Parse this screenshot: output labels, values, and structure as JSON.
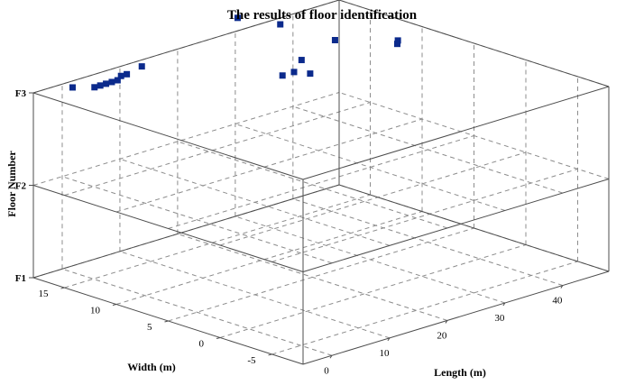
{
  "chart_data": {
    "type": "scatter",
    "title": "The results of floor identification",
    "xlabel": "Length (m)",
    "ylabel": "Width (m)",
    "zlabel": "Floor Number",
    "x_ticks": [
      "0",
      "10",
      "20",
      "30",
      "40"
    ],
    "y_ticks": [
      "-5",
      "0",
      "5",
      "10",
      "15"
    ],
    "z_ticks": [
      "F1",
      "F2",
      "F3"
    ],
    "xlim": [
      -5,
      48
    ],
    "ylim": [
      -8,
      18
    ],
    "zlim": [
      1,
      3
    ],
    "grid": true,
    "marker": "square",
    "colors": {
      "marker": "#0b2a8c",
      "axis": "#4d4d4d",
      "grid": "#8c8c8c"
    },
    "points": [
      {
        "x": 0.0,
        "y": 17.0,
        "z": 3
      },
      {
        "x": 2.0,
        "y": 16.0,
        "z": 3
      },
      {
        "x": 3.0,
        "y": 16.0,
        "z": 3
      },
      {
        "x": 4.0,
        "y": 16.0,
        "z": 3
      },
      {
        "x": 5.0,
        "y": 16.0,
        "z": 3
      },
      {
        "x": 6.0,
        "y": 16.0,
        "z": 3
      },
      {
        "x": 7.5,
        "y": 16.5,
        "z": 3
      },
      {
        "x": 8.5,
        "y": 16.5,
        "z": 3
      },
      {
        "x": 12.0,
        "y": 17.0,
        "z": 3
      },
      {
        "x": 22.0,
        "y": 9.0,
        "z": 3
      },
      {
        "x": 24.0,
        "y": 9.0,
        "z": 3
      },
      {
        "x": 25.0,
        "y": 8.0,
        "z": 3
      },
      {
        "x": 28.0,
        "y": 10.5,
        "z": 3
      },
      {
        "x": 42.0,
        "y": 9.0,
        "z": 3
      },
      {
        "x": 41.0,
        "y": 8.5,
        "z": 3
      },
      {
        "x": 36.5,
        "y": 12.0,
        "z": 3
      },
      {
        "x": 36.0,
        "y": 17.0,
        "z": 3
      },
      {
        "x": 34.0,
        "y": 20.0,
        "z": 3
      }
    ]
  }
}
